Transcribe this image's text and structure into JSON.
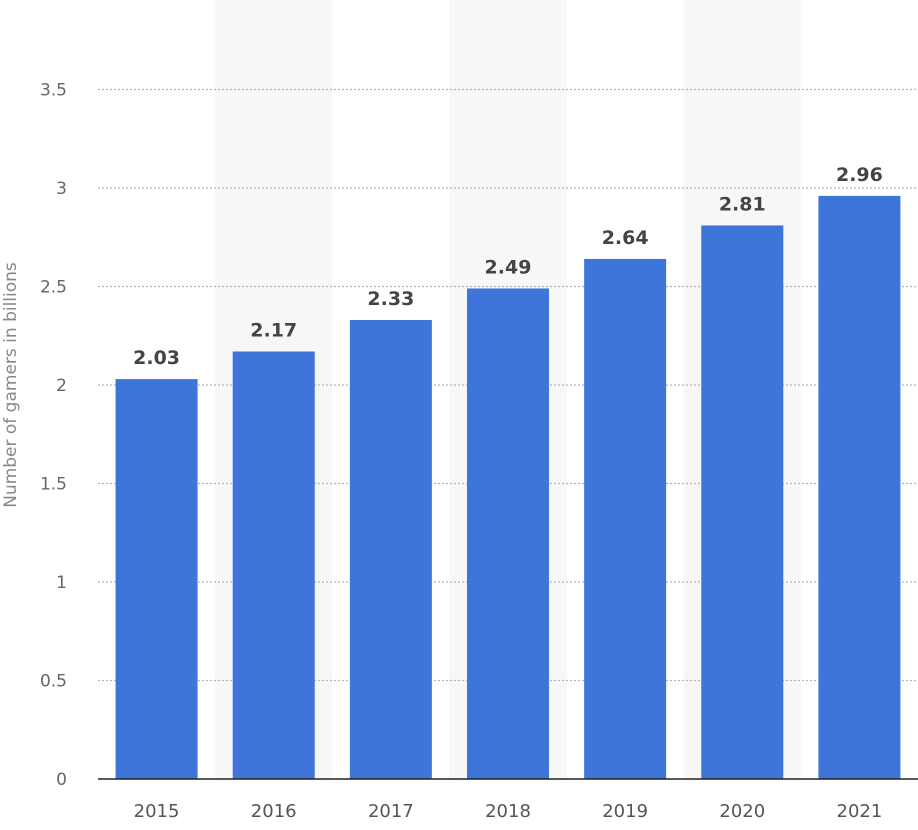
{
  "chart_data": {
    "type": "bar",
    "categories": [
      "2015",
      "2016",
      "2017",
      "2018",
      "2019",
      "2020",
      "2021"
    ],
    "values": [
      2.03,
      2.17,
      2.33,
      2.49,
      2.64,
      2.81,
      2.96
    ],
    "data_labels": [
      "2.03",
      "2.17",
      "2.33",
      "2.49",
      "2.64",
      "2.81",
      "2.96"
    ],
    "title": "",
    "xlabel": "",
    "ylabel": "Number of gamers in billions",
    "ylim": [
      0,
      3.5
    ],
    "yticks": [
      0,
      0.5,
      1,
      1.5,
      2,
      2.5,
      3,
      3.5
    ],
    "ytick_labels": [
      "0",
      "0.5",
      "1",
      "1.5",
      "2",
      "2.5",
      "3",
      "3.5"
    ],
    "grid": true,
    "alternating_column_bands": true,
    "bar_color": "#3f74d8",
    "band_color": "#f7f7f7"
  }
}
